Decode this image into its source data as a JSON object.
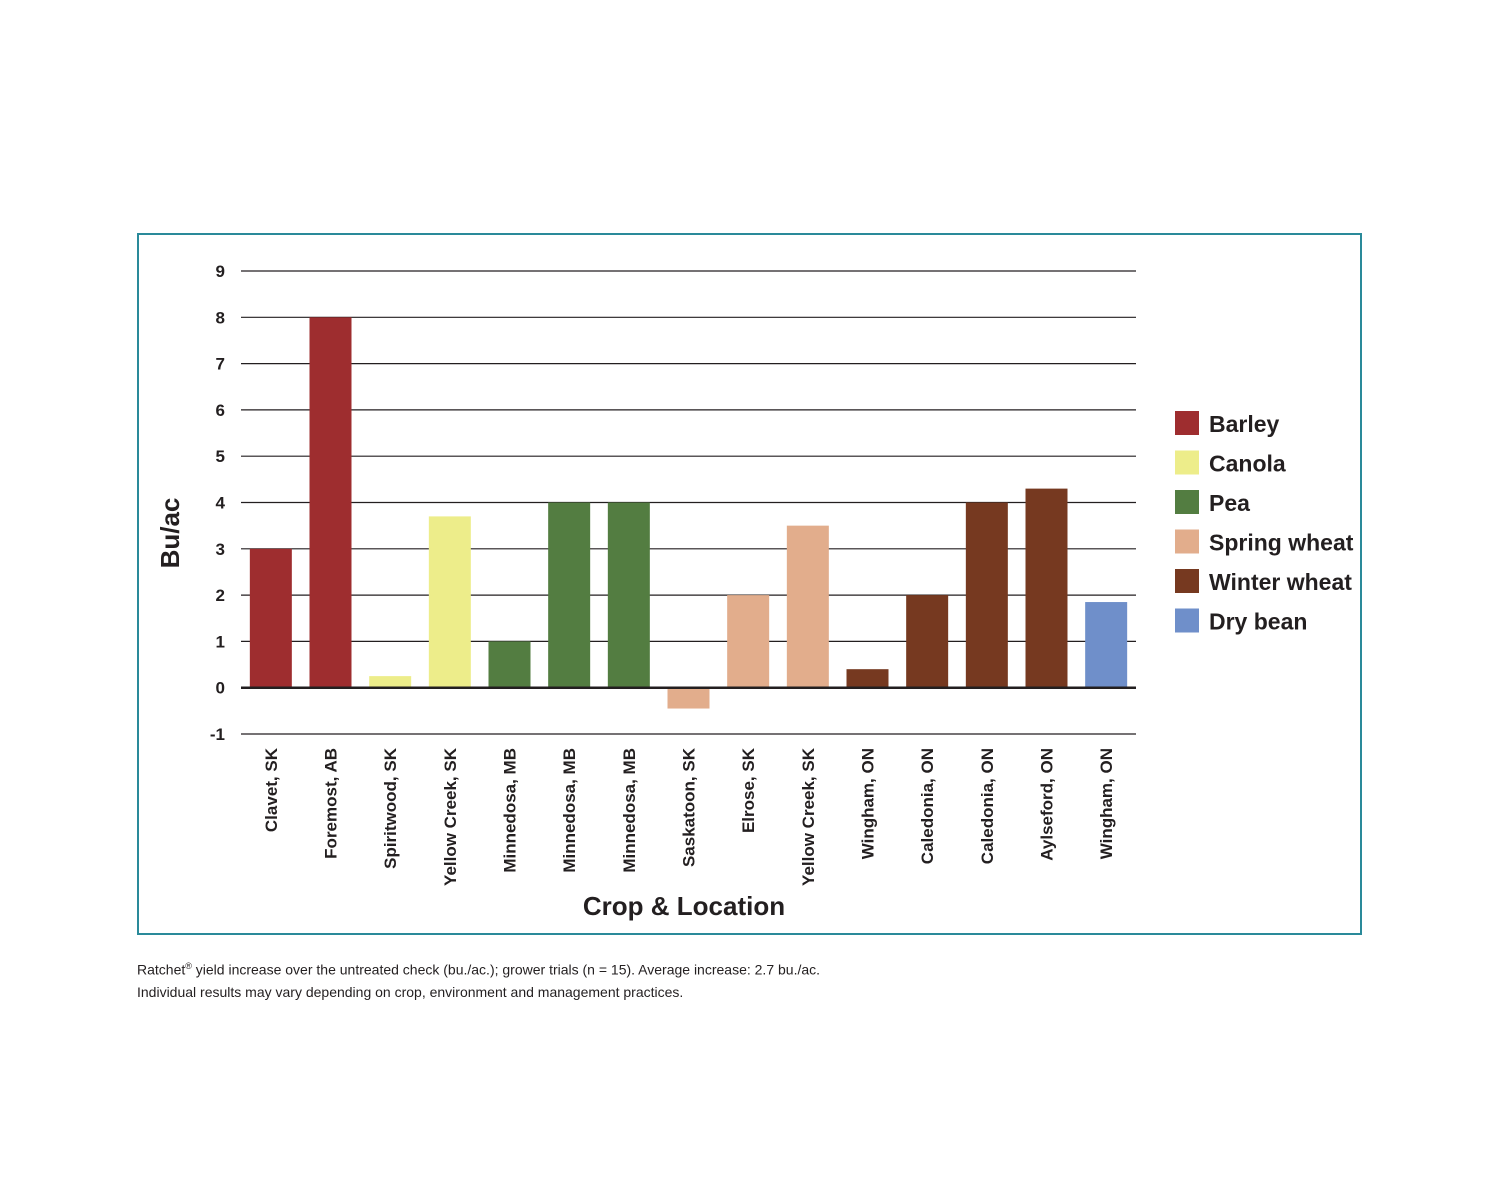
{
  "chart_data": {
    "type": "bar",
    "title": "",
    "xlabel": "Crop & Location",
    "ylabel": "Bu/ac",
    "ylim": [
      -1,
      9
    ],
    "yticks": [
      9,
      8,
      7,
      6,
      5,
      4,
      3,
      2,
      1,
      0,
      -1
    ],
    "grid": true,
    "legend_position": "right",
    "categories": [
      "Clavet, SK",
      "Foremost, AB",
      "Spiritwood, SK",
      "Yellow Creek, SK",
      "Minnedosa, MB",
      "Minnedosa, MB",
      "Minnedosa, MB",
      "Saskatoon, SK",
      "Elrose, SK",
      "Yellow Creek, SK",
      "Wingham, ON",
      "Caledonia, ON",
      "Caledonia, ON",
      "Aylseford, ON",
      "Wingham, ON"
    ],
    "values": [
      3.0,
      8.0,
      0.25,
      3.7,
      1.0,
      4.0,
      4.0,
      -0.45,
      2.0,
      3.5,
      0.4,
      2.0,
      4.0,
      4.3,
      1.85
    ],
    "crop": [
      "Barley",
      "Barley",
      "Canola",
      "Canola",
      "Pea",
      "Pea",
      "Pea",
      "Spring wheat",
      "Spring wheat",
      "Spring wheat",
      "Winter wheat",
      "Winter wheat",
      "Winter wheat",
      "Winter wheat",
      "Dry bean"
    ],
    "legend": [
      {
        "name": "Barley",
        "color": "#9e2d2f"
      },
      {
        "name": "Canola",
        "color": "#eded8a"
      },
      {
        "name": "Pea",
        "color": "#537d41"
      },
      {
        "name": "Spring wheat",
        "color": "#e2ad8c"
      },
      {
        "name": "Winter wheat",
        "color": "#763920"
      },
      {
        "name": "Dry bean",
        "color": "#6f8fca"
      }
    ]
  },
  "caption": {
    "line1_prefix": "Ratchet",
    "line1_reg": "®",
    "line1_rest": " yield increase over the untreated check (bu./ac.); grower trials (n = 15). Average increase: 2.7 bu./ac.",
    "line2": "Individual results may vary depending on crop, environment and management practices."
  }
}
